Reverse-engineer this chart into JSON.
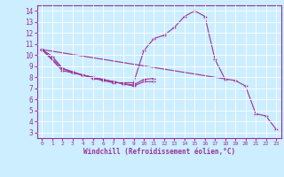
{
  "bg_color": "#cceeff",
  "line_color": "#993399",
  "grid_color": "#ffffff",
  "xlabel": "Windchill (Refroidissement éolien,°C)",
  "xlim": [
    -0.5,
    23.5
  ],
  "ylim": [
    2.5,
    14.5
  ],
  "xticks": [
    0,
    1,
    2,
    3,
    4,
    5,
    6,
    7,
    8,
    9,
    10,
    11,
    12,
    13,
    14,
    15,
    16,
    17,
    18,
    19,
    20,
    21,
    22,
    23
  ],
  "yticks": [
    3,
    4,
    5,
    6,
    7,
    8,
    9,
    10,
    11,
    12,
    13,
    14
  ],
  "line1_x": [
    0,
    1,
    2,
    3,
    4,
    5,
    6,
    7,
    8,
    9,
    10,
    11,
    12,
    13,
    14,
    15,
    16,
    17,
    18
  ],
  "line1_y": [
    10.5,
    9.9,
    8.8,
    8.5,
    8.2,
    7.9,
    7.7,
    7.5,
    7.5,
    7.5,
    10.4,
    11.5,
    11.8,
    12.5,
    13.5,
    14.0,
    13.5,
    9.6,
    7.8
  ],
  "line2_x": [
    0,
    2,
    3,
    4,
    5,
    6,
    7,
    8,
    9,
    10,
    11
  ],
  "line2_y": [
    10.5,
    8.8,
    8.4,
    8.2,
    8.0,
    7.8,
    7.6,
    7.4,
    7.2,
    7.6,
    7.6
  ],
  "line3_x": [
    0,
    2,
    3,
    4,
    5,
    6,
    7,
    8,
    9,
    10,
    11
  ],
  "line3_y": [
    10.5,
    8.6,
    8.4,
    8.2,
    8.0,
    7.8,
    7.6,
    7.4,
    7.3,
    7.8,
    7.9
  ],
  "line4_x": [
    0,
    19,
    20,
    21,
    22,
    23
  ],
  "line4_y": [
    10.5,
    7.7,
    7.2,
    4.7,
    4.5,
    3.3
  ]
}
